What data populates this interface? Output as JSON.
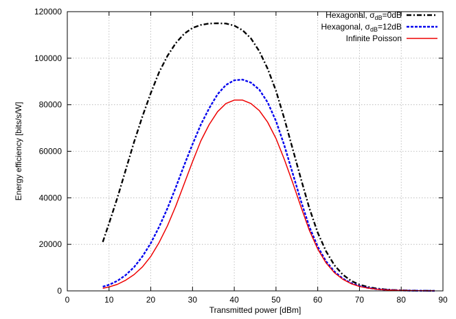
{
  "chart_data": {
    "type": "line",
    "title": "",
    "xlabel": "Transmitted power [dBm]",
    "ylabel": "Energy efficiency [bits/s/W]",
    "xlim": [
      0,
      90
    ],
    "ylim": [
      0,
      120000
    ],
    "xticks": [
      "0",
      "10",
      "20",
      "30",
      "40",
      "50",
      "60",
      "70",
      "80",
      "90"
    ],
    "yticks": [
      "0",
      "20000",
      "40000",
      "60000",
      "80000",
      "100000",
      "120000"
    ],
    "grid": true,
    "legend_position": "top-right",
    "series": [
      {
        "name_prefix": "Hexagonal, σ",
        "name_sub": "dB",
        "name_suffix": "=0dB",
        "color": "#000000",
        "style": "dash-dot",
        "x": [
          8.5,
          10,
          12,
          14,
          16,
          18,
          20,
          22,
          24,
          26,
          28,
          30,
          32,
          34,
          36,
          38,
          40,
          42,
          44,
          46,
          48,
          50,
          52,
          54,
          56,
          58,
          60,
          62,
          64,
          66,
          68,
          70,
          72,
          74,
          76,
          78,
          80,
          82,
          84,
          86,
          88
        ],
        "y": [
          21000,
          29000,
          40000,
          52000,
          64000,
          75000,
          85000,
          94000,
          101000,
          106500,
          110500,
          113000,
          114300,
          114900,
          115000,
          114900,
          114000,
          112000,
          108500,
          103000,
          95500,
          86000,
          74000,
          61000,
          48000,
          35500,
          25000,
          17000,
          11000,
          7000,
          4300,
          2700,
          1700,
          1050,
          650,
          400,
          250,
          150,
          90,
          50,
          30
        ]
      },
      {
        "name_prefix": "Hexagonal, σ",
        "name_sub": "dB",
        "name_suffix": "=12dB",
        "color": "#0000ee",
        "style": "dashed",
        "x": [
          8.5,
          10,
          12,
          14,
          16,
          18,
          20,
          22,
          24,
          26,
          28,
          30,
          32,
          34,
          36,
          38,
          40,
          42,
          44,
          46,
          48,
          50,
          52,
          54,
          56,
          58,
          60,
          62,
          64,
          66,
          68,
          70,
          72,
          74,
          76,
          78,
          80,
          82,
          84,
          86,
          88
        ],
        "y": [
          1800,
          2600,
          4300,
          6800,
          10200,
          14800,
          20500,
          27500,
          35500,
          44500,
          54000,
          63000,
          71500,
          78500,
          84500,
          88500,
          90500,
          90800,
          89500,
          86500,
          81000,
          73000,
          62500,
          50500,
          38500,
          27500,
          19000,
          12700,
          8300,
          5300,
          3300,
          2100,
          1300,
          800,
          500,
          300,
          180,
          110,
          70,
          40,
          25
        ]
      },
      {
        "name_prefix": "Infinite Poisson",
        "name_sub": "",
        "name_suffix": "",
        "color": "#ee0000",
        "style": "solid",
        "x": [
          8.5,
          10,
          12,
          14,
          16,
          18,
          20,
          22,
          24,
          26,
          28,
          30,
          32,
          34,
          36,
          38,
          40,
          42,
          44,
          46,
          48,
          50,
          52,
          54,
          56,
          58,
          60,
          62,
          64,
          66,
          68,
          70,
          72,
          74,
          76,
          78,
          80,
          82,
          84,
          86,
          88
        ],
        "y": [
          1100,
          1700,
          2800,
          4600,
          7000,
          10300,
          14800,
          20800,
          28000,
          36500,
          46000,
          55500,
          64500,
          71500,
          77000,
          80500,
          82000,
          82000,
          80500,
          77500,
          72500,
          65500,
          56500,
          46500,
          36000,
          26000,
          18000,
          12000,
          7800,
          5000,
          3100,
          1900,
          1200,
          750,
          450,
          280,
          170,
          100,
          60,
          35,
          20
        ]
      }
    ]
  }
}
